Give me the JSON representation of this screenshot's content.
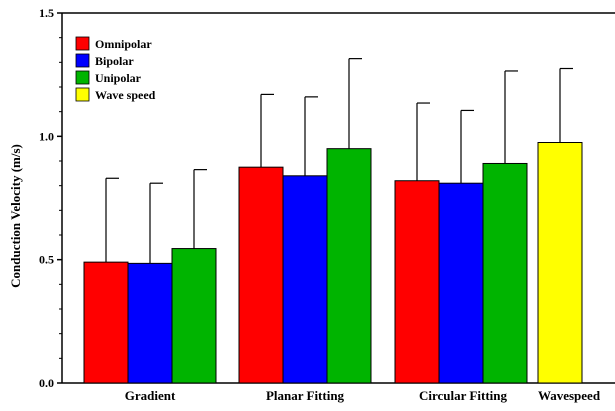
{
  "chart_data": {
    "type": "bar",
    "title": "",
    "xlabel": "",
    "ylabel": "Conduction Velocity  (m/s)",
    "ylim": [
      0,
      1.5
    ],
    "yticks": [
      "0.0",
      "0.5",
      "1.0",
      "1.5"
    ],
    "grid": false,
    "legend_position": "top-left",
    "error_bars": true,
    "categories": [
      "Gradient",
      "Planar Fitting",
      "Circular Fitting",
      "Wavespeed"
    ],
    "series": [
      {
        "name": "Omnipolar",
        "color": "#ff0000",
        "values": [
          0.49,
          0.875,
          0.82,
          null
        ],
        "error": [
          0.34,
          0.295,
          0.315,
          null
        ]
      },
      {
        "name": "Bipolar",
        "color": "#0000ff",
        "values": [
          0.485,
          0.84,
          0.81,
          null
        ],
        "error": [
          0.325,
          0.32,
          0.295,
          null
        ]
      },
      {
        "name": "Unipolar",
        "color": "#00b400",
        "values": [
          0.545,
          0.95,
          0.89,
          null
        ],
        "error": [
          0.32,
          0.365,
          0.375,
          null
        ]
      },
      {
        "name": "Wave speed",
        "color": "#ffff00",
        "values": [
          null,
          null,
          null,
          0.975
        ],
        "error": [
          null,
          null,
          null,
          0.3
        ]
      }
    ]
  }
}
